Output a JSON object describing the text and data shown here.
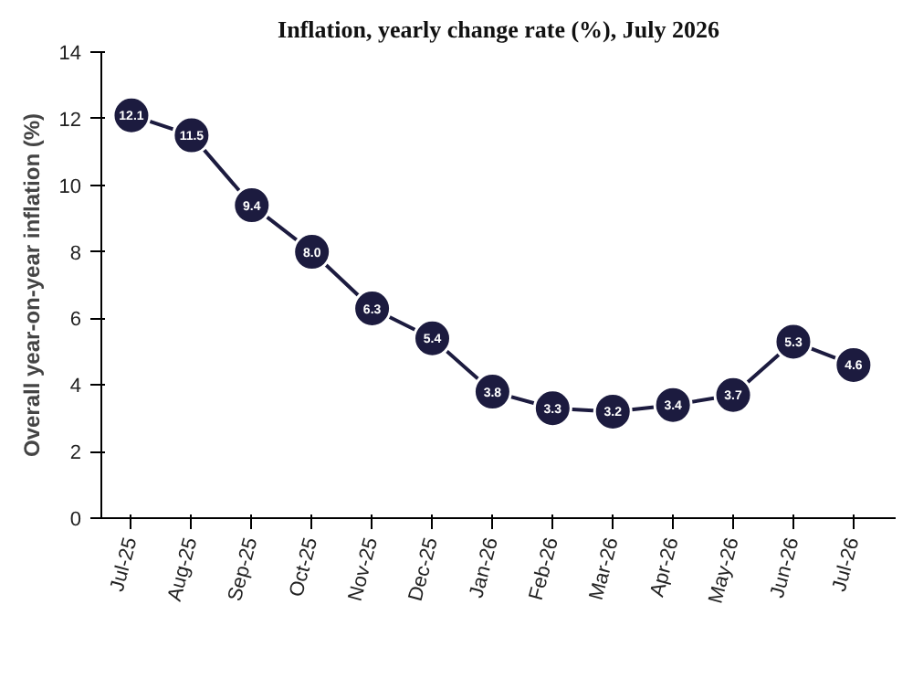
{
  "chart_data": {
    "type": "line",
    "title": "Inflation, yearly change rate (%), July 2026",
    "ylabel": "Overall year-on-year inflation (%)",
    "categories": [
      "Jul-25",
      "Aug-25",
      "Sep-25",
      "Oct-25",
      "Nov-25",
      "Dec-25",
      "Jan-26",
      "Feb-26",
      "Mar-26",
      "Apr-26",
      "May-26",
      "Jun-26",
      "Jul-26"
    ],
    "series": [
      {
        "color": "#1c1b3f",
        "values": [
          12.1,
          11.5,
          9.4,
          8.0,
          6.3,
          5.4,
          3.8,
          3.3,
          3.2,
          3.4,
          3.7,
          5.3,
          4.6
        ],
        "value_labels": [
          "12.1",
          "11.5",
          "9.4",
          "8.0",
          "6.3",
          "5.4",
          "3.8",
          "3.3",
          "3.2",
          "3.4",
          "3.7",
          "5.3",
          "4.6"
        ]
      }
    ],
    "ylim": [
      0,
      14
    ],
    "yticks": [
      0,
      2,
      4,
      6,
      8,
      10,
      12,
      14
    ],
    "grid": false,
    "marker": "circle",
    "line_style": "solid"
  }
}
